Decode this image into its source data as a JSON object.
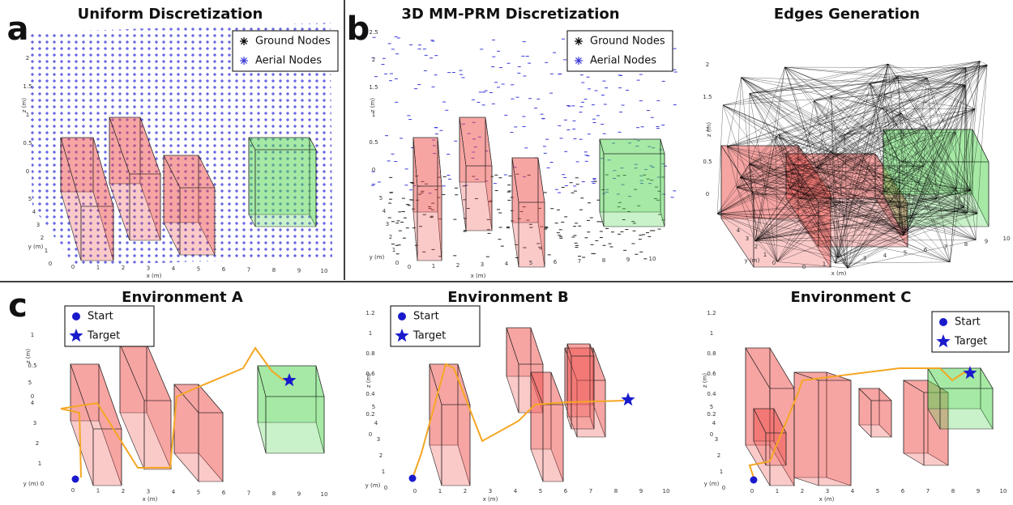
{
  "panels": [
    {
      "letter": "a",
      "title": "Uniform Discretization",
      "legend": [
        "Ground Nodes",
        "Aerial Nodes"
      ],
      "axes": {
        "x_label": "x (m)",
        "y_label": "y (m)",
        "z_label": "z (m)",
        "x_ticks": [
          0,
          1,
          2,
          3,
          4,
          5,
          6,
          7,
          8,
          9,
          10
        ],
        "y_ticks": [
          0,
          1,
          2,
          3,
          4,
          5
        ],
        "z_ticks": [
          0,
          0.5,
          1,
          1.5,
          2
        ]
      }
    },
    {
      "letter": "b",
      "title": "3D MM-PRM Discretization",
      "legend": [
        "Ground Nodes",
        "Aerial Nodes"
      ],
      "axes": {
        "x_label": "x (m)",
        "y_label": "y (m)",
        "z_label": "z (m)",
        "x_ticks": [
          0,
          1,
          2,
          3,
          4,
          5,
          6,
          7,
          8,
          9,
          10
        ],
        "y_ticks": [
          0,
          1,
          2,
          3,
          4,
          5
        ],
        "z_ticks": [
          0,
          0.5,
          1,
          1.5,
          2,
          2.5
        ]
      }
    },
    {
      "title": "Edges Generation",
      "axes": {
        "x_label": "x (m)",
        "y_label": "y (m)",
        "z_label": "z (m)",
        "x_ticks": [
          0,
          1,
          2,
          3,
          4,
          5,
          6,
          7,
          8,
          9,
          10
        ],
        "y_ticks": [
          0,
          1,
          2,
          3,
          4
        ],
        "z_ticks": [
          0,
          0.5,
          1,
          1.5,
          2
        ]
      }
    },
    {
      "letter": "c",
      "title": "Environment A",
      "legend": [
        "Start",
        "Target"
      ],
      "axes": {
        "x_label": "x (m)",
        "y_label": "y (m)",
        "z_label": "z (m)",
        "x_ticks": [
          0,
          1,
          2,
          3,
          4,
          5,
          6,
          7,
          8,
          9,
          10
        ],
        "y_ticks": [
          0,
          1,
          2,
          3,
          4,
          5
        ],
        "z_ticks": [
          0,
          0.5,
          1
        ]
      }
    },
    {
      "title": "Environment B",
      "legend": [
        "Start",
        "Target"
      ],
      "axes": {
        "x_label": "x (m)",
        "y_label": "y (m)",
        "z_label": "z (m)",
        "x_ticks": [
          0,
          1,
          2,
          3,
          4,
          5,
          6,
          7,
          8,
          9,
          10
        ],
        "y_ticks": [
          0,
          1,
          2,
          3,
          4,
          5
        ],
        "z_ticks": [
          0,
          0.2,
          0.4,
          0.6,
          0.8,
          1,
          1.2
        ]
      }
    },
    {
      "title": "Environment C",
      "legend": [
        "Start",
        "Target"
      ],
      "axes": {
        "x_label": "x (m)",
        "y_label": "y (m)",
        "z_label": "z (m)",
        "x_ticks": [
          0,
          1,
          2,
          3,
          4,
          5,
          6,
          7,
          8,
          9,
          10
        ],
        "y_ticks": [
          0,
          1,
          2,
          3,
          4,
          5
        ],
        "z_ticks": [
          0,
          0.2,
          0.4,
          0.6,
          0.8,
          1,
          1.2
        ]
      }
    }
  ]
}
